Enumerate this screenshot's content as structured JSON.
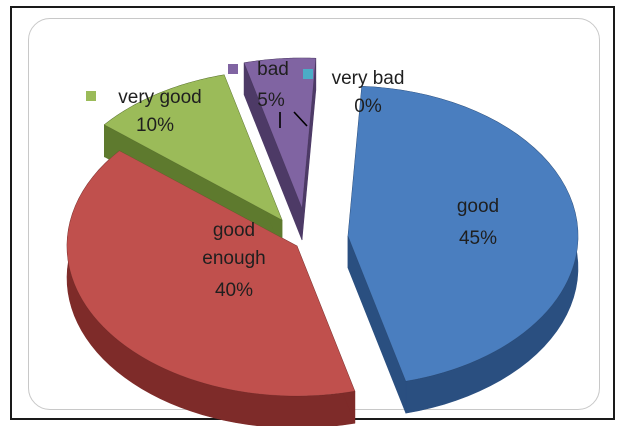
{
  "chart_data": {
    "type": "pie",
    "style": "3d-exploded",
    "slices": [
      {
        "key": "good",
        "label": "good",
        "value": 45,
        "display": "45%",
        "color": "#4a7ebf",
        "side": "#2a4f80"
      },
      {
        "key": "good_enough",
        "label_lines": [
          "good",
          "enough"
        ],
        "label": "good enough",
        "value": 40,
        "display": "40%",
        "color": "#c0504d",
        "side": "#7e2b29"
      },
      {
        "key": "very_good",
        "label": "very good",
        "value": 10,
        "display": "10%",
        "color": "#9bbb59",
        "side": "#5e7a2e"
      },
      {
        "key": "bad",
        "label": "bad",
        "value": 5,
        "display": "5%",
        "color": "#8064a2",
        "side": "#4d3a66"
      },
      {
        "key": "very_bad",
        "label": "very  bad",
        "value": 0,
        "display": "0%",
        "color": "#4bacc6",
        "side": "#2c7589"
      }
    ],
    "legend_markers": [
      "very_good",
      "bad",
      "very_bad"
    ]
  }
}
